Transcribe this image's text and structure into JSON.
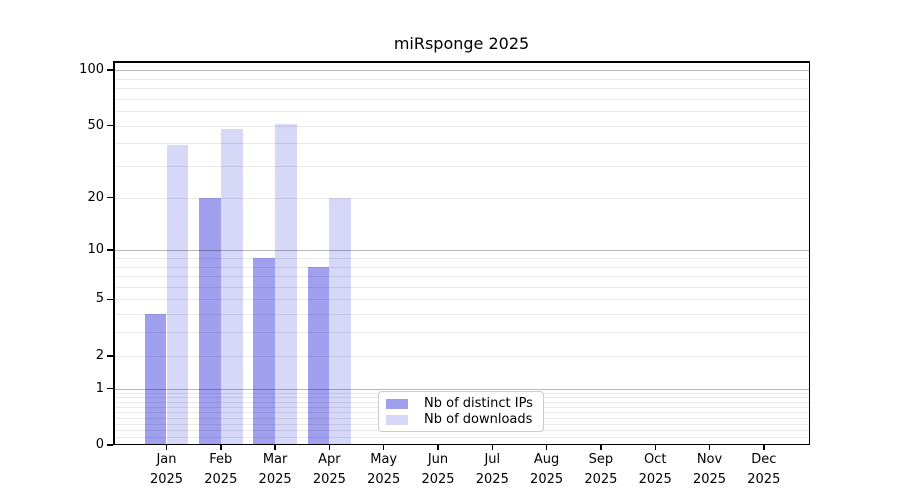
{
  "title": "miRsponge 2025",
  "chart_data": {
    "type": "bar",
    "title": "miRsponge 2025",
    "categories": [
      "Jan",
      "Feb",
      "Mar",
      "Apr",
      "May",
      "Jun",
      "Jul",
      "Aug",
      "Sep",
      "Oct",
      "Nov",
      "Dec"
    ],
    "x_year_sublabel": "2025",
    "series": [
      {
        "name": "Nb of distinct IPs",
        "color": "#a0a0ef",
        "values": [
          4,
          20,
          9,
          8,
          null,
          null,
          null,
          null,
          null,
          null,
          null,
          null
        ]
      },
      {
        "name": "Nb of downloads",
        "color": "#d7d7f8",
        "values": [
          39,
          48,
          51,
          20,
          null,
          null,
          null,
          null,
          null,
          null,
          null,
          null
        ]
      }
    ],
    "y_axis": {
      "scale": "log10(1+value)",
      "range": [
        0,
        112
      ],
      "ticks": [
        0,
        1,
        2,
        5,
        10,
        20,
        50,
        100
      ],
      "major_gridlines": [
        1,
        10,
        100
      ],
      "minor_gridlines": [
        0.1,
        0.2,
        0.3,
        0.4,
        0.5,
        0.6,
        0.7,
        0.8,
        0.9,
        2,
        3,
        4,
        5,
        6,
        7,
        8,
        9,
        20,
        30,
        40,
        50,
        60,
        70,
        80,
        90
      ]
    },
    "grid": "horizontal",
    "legend_position": "lower-center-inside",
    "colors": {
      "grid_minor": "#e8e8e8",
      "grid_major": "#b8b8b8",
      "spine": "#000000",
      "text": "#000000",
      "background": "#ffffff"
    }
  }
}
